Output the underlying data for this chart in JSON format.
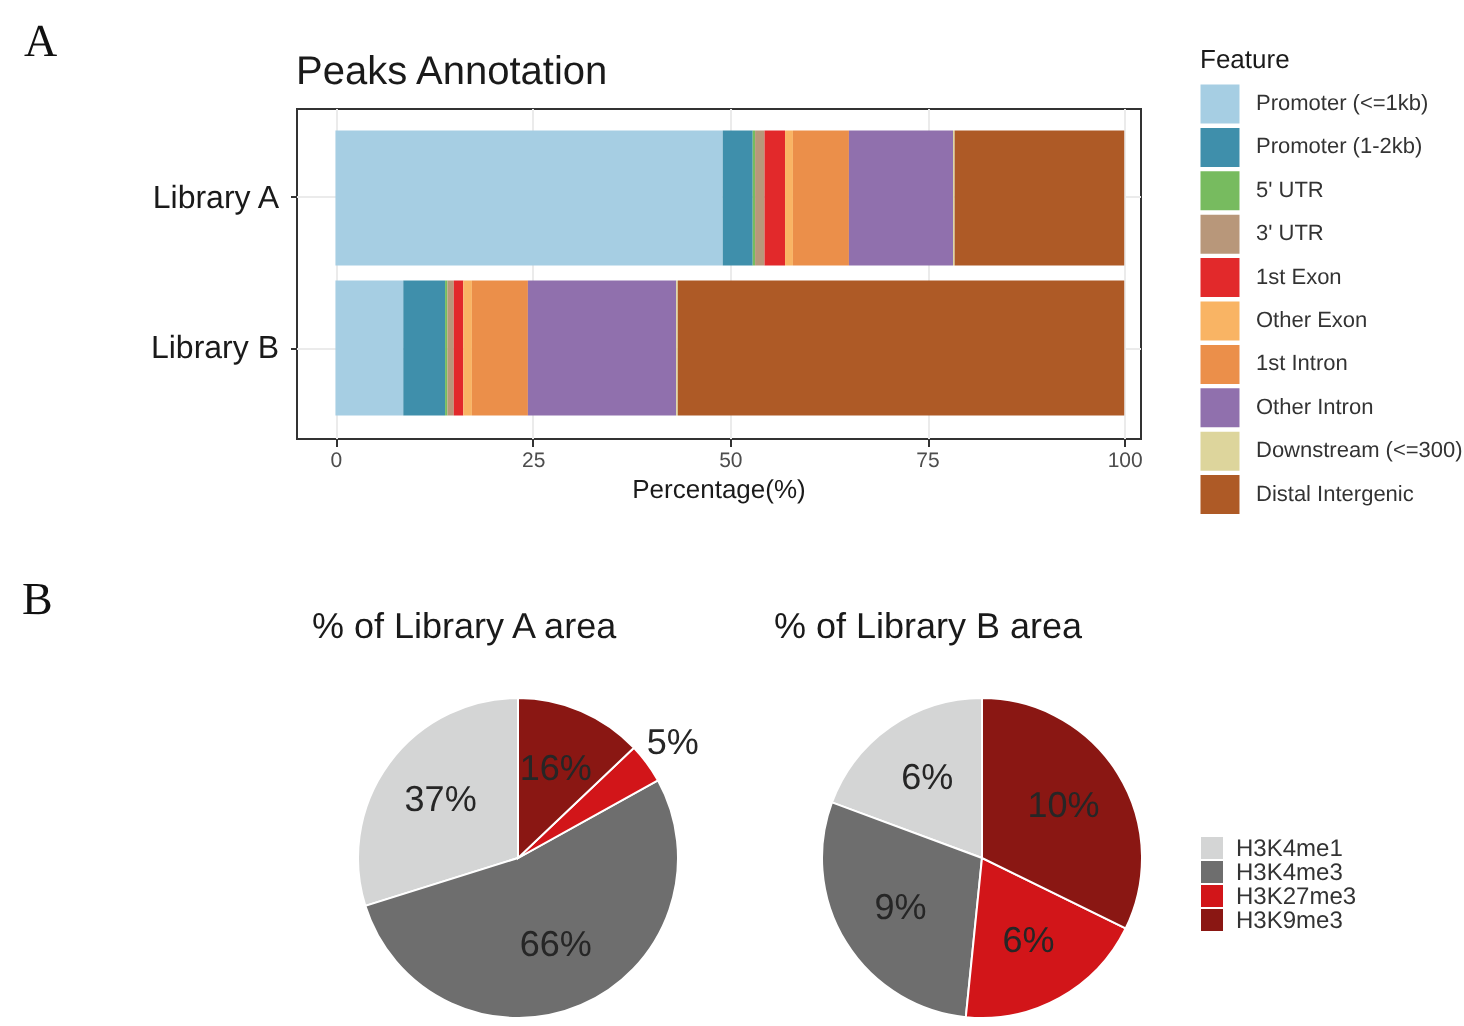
{
  "chart_data": [
    {
      "type": "bar",
      "title": "Peaks Annotation",
      "xlabel": "Percentage(%)",
      "legend_title": "Feature",
      "annotations": [
        "A"
      ],
      "orientation": "horizontal",
      "stacked": true,
      "categories": [
        "Library A",
        "Library B"
      ],
      "series": [
        {
          "name": "Promoter (<=1kb)",
          "color": "#a6cee3",
          "values": [
            49.1,
            8.6
          ]
        },
        {
          "name": "Promoter (1-2kb)",
          "color": "#3f8fab",
          "values": [
            3.8,
            5.3
          ]
        },
        {
          "name": "5' UTR",
          "color": "#77bb5f",
          "values": [
            0.3,
            0.3
          ]
        },
        {
          "name": "3' UTR",
          "color": "#b8977a",
          "values": [
            1.2,
            0.8
          ]
        },
        {
          "name": "1st Exon",
          "color": "#e2292b",
          "values": [
            2.6,
            1.2
          ]
        },
        {
          "name": "Other Exon",
          "color": "#f9b464",
          "values": [
            1.0,
            1.1
          ]
        },
        {
          "name": "1st Intron",
          "color": "#eb8f4a",
          "values": [
            7.1,
            7.1
          ]
        },
        {
          "name": "Other Intron",
          "color": "#9070ad",
          "values": [
            13.2,
            18.8
          ]
        },
        {
          "name": "Downstream (<=300)",
          "color": "#ddd59c",
          "values": [
            0.2,
            0.2
          ]
        },
        {
          "name": "Distal Intergenic",
          "color": "#ae5a26",
          "values": [
            21.5,
            56.6
          ]
        }
      ],
      "xlim": [
        -5,
        102
      ],
      "xticks": [
        0,
        25,
        50,
        75,
        100
      ],
      "grid": true,
      "legend": "right"
    },
    {
      "type": "pie",
      "annotations": [
        "B"
      ],
      "categories": [
        "H3K4me1",
        "H3K4me3",
        "H3K27me3",
        "H3K9me3"
      ],
      "colors": [
        "#d4d5d5",
        "#6e6e6e",
        "#d21519",
        "#8a1713"
      ],
      "series": [
        {
          "name": "% of Library A area",
          "values": [
            37,
            66,
            5,
            16
          ],
          "value_labels": [
            "37%",
            "66%",
            "5%",
            "16%"
          ]
        },
        {
          "name": "% of Library B area",
          "values": [
            6,
            9,
            6,
            10
          ],
          "value_labels": [
            "6%",
            "9%",
            "6%",
            "10%"
          ]
        }
      ],
      "legend": "right"
    }
  ]
}
